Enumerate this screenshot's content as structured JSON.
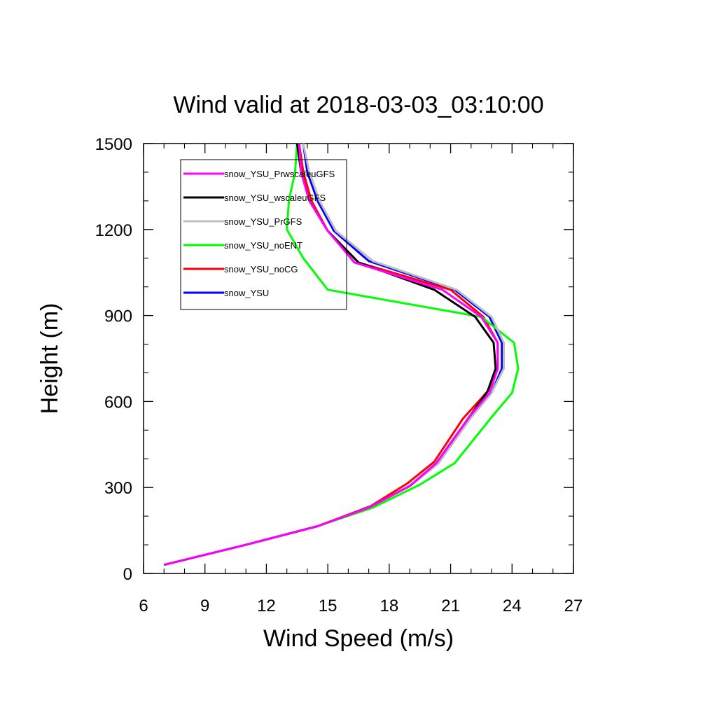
{
  "chart_data": {
    "type": "line",
    "title": "Wind valid at 2018-03-03_03:10:00",
    "xlabel": "Wind Speed (m/s)",
    "ylabel": "Height (m)",
    "xlim": [
      6,
      27
    ],
    "ylim": [
      0,
      1500
    ],
    "xticks": [
      "6",
      "9",
      "12",
      "15",
      "18",
      "21",
      "24",
      "27"
    ],
    "yticks": [
      "0",
      "300",
      "600",
      "900",
      "1200",
      "1500"
    ],
    "grid": false,
    "legend_position": "top-left",
    "series": [
      {
        "name": "snow_YSU",
        "color": "#0000ff",
        "points": [
          [
            7.0,
            30
          ],
          [
            11.0,
            100
          ],
          [
            14.5,
            165
          ],
          [
            17.0,
            230
          ],
          [
            19.0,
            305
          ],
          [
            20.4,
            385
          ],
          [
            22.0,
            545
          ],
          [
            23.0,
            630
          ],
          [
            23.5,
            715
          ],
          [
            23.5,
            805
          ],
          [
            22.9,
            895
          ],
          [
            21.2,
            990
          ],
          [
            17.0,
            1090
          ],
          [
            15.3,
            1195
          ],
          [
            14.5,
            1300
          ],
          [
            14.0,
            1400
          ],
          [
            13.8,
            1500
          ]
        ]
      },
      {
        "name": "snow_YSU_noCG",
        "color": "#ff0000",
        "points": [
          [
            7.0,
            30
          ],
          [
            11.0,
            100
          ],
          [
            14.5,
            165
          ],
          [
            17.1,
            235
          ],
          [
            18.9,
            315
          ],
          [
            20.2,
            390
          ],
          [
            21.6,
            540
          ],
          [
            22.8,
            635
          ],
          [
            23.3,
            715
          ],
          [
            23.3,
            805
          ],
          [
            22.6,
            895
          ],
          [
            21.0,
            990
          ],
          [
            16.5,
            1085
          ],
          [
            15.0,
            1195
          ],
          [
            14.2,
            1300
          ],
          [
            13.8,
            1400
          ],
          [
            13.6,
            1500
          ]
        ]
      },
      {
        "name": "snow_YSU_noENT",
        "color": "#00ff00",
        "points": [
          [
            7.0,
            30
          ],
          [
            11.0,
            100
          ],
          [
            14.5,
            165
          ],
          [
            17.2,
            230
          ],
          [
            19.5,
            310
          ],
          [
            21.2,
            385
          ],
          [
            23.0,
            545
          ],
          [
            24.0,
            630
          ],
          [
            24.3,
            715
          ],
          [
            24.1,
            805
          ],
          [
            22.5,
            895
          ],
          [
            15.0,
            990
          ],
          [
            13.8,
            1100
          ],
          [
            13.0,
            1200
          ],
          [
            13.1,
            1300
          ],
          [
            13.4,
            1400
          ],
          [
            13.5,
            1500
          ]
        ]
      },
      {
        "name": "snow_YSU_PrGFS",
        "color": "#bebebe",
        "points": [
          [
            7.0,
            30
          ],
          [
            11.0,
            100
          ],
          [
            14.5,
            165
          ],
          [
            17.0,
            230
          ],
          [
            19.0,
            305
          ],
          [
            20.4,
            385
          ],
          [
            22.0,
            545
          ],
          [
            23.0,
            630
          ],
          [
            23.6,
            715
          ],
          [
            23.6,
            805
          ],
          [
            23.0,
            895
          ],
          [
            21.3,
            990
          ],
          [
            17.2,
            1090
          ],
          [
            15.4,
            1195
          ],
          [
            14.6,
            1300
          ],
          [
            14.1,
            1400
          ],
          [
            13.8,
            1500
          ]
        ]
      },
      {
        "name": "snow_YSU_wscaleuGFS",
        "color": "#000000",
        "points": [
          [
            7.0,
            30
          ],
          [
            11.0,
            100
          ],
          [
            14.5,
            165
          ],
          [
            17.0,
            230
          ],
          [
            19.0,
            305
          ],
          [
            20.3,
            385
          ],
          [
            21.9,
            545
          ],
          [
            22.8,
            635
          ],
          [
            23.2,
            715
          ],
          [
            23.1,
            805
          ],
          [
            22.2,
            895
          ],
          [
            20.2,
            990
          ],
          [
            16.5,
            1085
          ],
          [
            15.0,
            1195
          ],
          [
            14.1,
            1300
          ],
          [
            13.7,
            1400
          ],
          [
            13.5,
            1500
          ]
        ]
      },
      {
        "name": "snow_YSU_PrwscaleuGFS",
        "color": "#ff00ff",
        "points": [
          [
            7.0,
            30
          ],
          [
            11.0,
            100
          ],
          [
            14.5,
            165
          ],
          [
            17.0,
            230
          ],
          [
            19.0,
            305
          ],
          [
            20.3,
            385
          ],
          [
            21.9,
            545
          ],
          [
            22.9,
            630
          ],
          [
            23.3,
            715
          ],
          [
            23.3,
            805
          ],
          [
            22.5,
            895
          ],
          [
            20.6,
            990
          ],
          [
            16.3,
            1085
          ],
          [
            15.0,
            1195
          ],
          [
            14.1,
            1300
          ],
          [
            13.7,
            1400
          ],
          [
            13.6,
            1500
          ]
        ]
      }
    ],
    "legend_order": [
      "snow_YSU_PrwscaleuGFS",
      "snow_YSU_wscaleuGFS",
      "snow_YSU_PrGFS",
      "snow_YSU_noENT",
      "snow_YSU_noCG",
      "snow_YSU"
    ]
  }
}
